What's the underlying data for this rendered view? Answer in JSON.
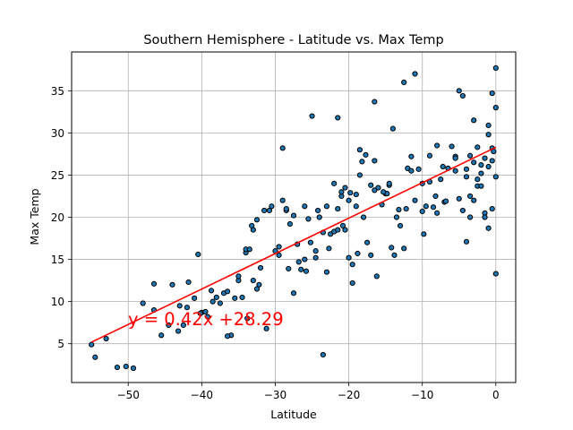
{
  "chart_data": {
    "type": "scatter",
    "title": "Southern Hemisphere - Latitude vs. Max Temp",
    "xlabel": "Latitude",
    "ylabel": "Max Temp",
    "xlim": [
      -57.7,
      2.7
    ],
    "ylim": [
      0.4,
      39.6
    ],
    "xticks": [
      -50,
      -40,
      -30,
      -20,
      -10,
      0
    ],
    "yticks": [
      5,
      10,
      15,
      20,
      25,
      30,
      35
    ],
    "grid": true,
    "colors": {
      "point": "#1f77b4",
      "point_edge": "#000000",
      "line": "#ff0000"
    },
    "regression": {
      "slope": 0.42,
      "intercept": 28.29,
      "x_range": [
        -55,
        0
      ],
      "equation": "y = 0.42x +28.29"
    },
    "points": [
      [
        -55,
        4.9
      ],
      [
        -54.5,
        3.4
      ],
      [
        -53,
        5.6
      ],
      [
        -51.5,
        2.2
      ],
      [
        -50.3,
        2.3
      ],
      [
        -49.3,
        2.1
      ],
      [
        -48,
        9.8
      ],
      [
        -46.5,
        12.1
      ],
      [
        -46.5,
        9
      ],
      [
        -45.5,
        6
      ],
      [
        -44.5,
        7.2
      ],
      [
        -44,
        12
      ],
      [
        -43,
        9.5
      ],
      [
        -42.5,
        7.2
      ],
      [
        -42,
        9.3
      ],
      [
        -41.8,
        12.3
      ],
      [
        -41,
        10.4
      ],
      [
        -40.5,
        15.6
      ],
      [
        -40,
        8.7
      ],
      [
        -39.5,
        8.8
      ],
      [
        -38.5,
        10
      ],
      [
        -38,
        10.5
      ],
      [
        -37.5,
        9.8
      ],
      [
        -37,
        11
      ],
      [
        -36.5,
        11.2
      ],
      [
        -36,
        6
      ],
      [
        -35.5,
        10.4
      ],
      [
        -35,
        12.5
      ],
      [
        -35,
        13
      ],
      [
        -34.5,
        10.5
      ],
      [
        -34,
        15.8
      ],
      [
        -34,
        16.2
      ],
      [
        -33.5,
        16.2
      ],
      [
        -33,
        12.5
      ],
      [
        -33,
        18.5
      ],
      [
        -32.5,
        19.7
      ],
      [
        -32.5,
        11.5
      ],
      [
        -32,
        14
      ],
      [
        -31.5,
        20.8
      ],
      [
        -30.5,
        21.3
      ],
      [
        -30,
        16
      ],
      [
        -29.5,
        15.5
      ],
      [
        -29.5,
        16.5
      ],
      [
        -29,
        22
      ],
      [
        -29,
        28.2
      ],
      [
        -28.5,
        20.8
      ],
      [
        -28.5,
        21
      ],
      [
        -28,
        19.2
      ],
      [
        -27.5,
        11
      ],
      [
        -27.5,
        20.2
      ],
      [
        -27,
        16.8
      ],
      [
        -26.5,
        13.8
      ],
      [
        -26,
        15
      ],
      [
        -26,
        21.3
      ],
      [
        -25.5,
        19.8
      ],
      [
        -25.2,
        17
      ],
      [
        -25,
        32
      ],
      [
        -24.5,
        16
      ],
      [
        -24.5,
        15.2
      ],
      [
        -24,
        20
      ],
      [
        -23.5,
        18.2
      ],
      [
        -23.5,
        3.7
      ],
      [
        -23,
        21.3
      ],
      [
        -23,
        13.5
      ],
      [
        -22.5,
        18
      ],
      [
        -22,
        24
      ],
      [
        -22,
        18.3
      ],
      [
        -21.5,
        21
      ],
      [
        -21.5,
        18.5
      ],
      [
        -21.5,
        31.8
      ],
      [
        -21,
        22.5
      ],
      [
        -21,
        23
      ],
      [
        -20.5,
        23.5
      ],
      [
        -20.5,
        18.5
      ],
      [
        -20,
        15.2
      ],
      [
        -20,
        22
      ],
      [
        -19.5,
        14.4
      ],
      [
        -19.5,
        12.2
      ],
      [
        -19,
        21.3
      ],
      [
        -19,
        22.7
      ],
      [
        -18.5,
        28
      ],
      [
        -18.5,
        25
      ],
      [
        -18,
        20
      ],
      [
        -17.5,
        17
      ],
      [
        -17,
        15.5
      ],
      [
        -17,
        23.8
      ],
      [
        -16.5,
        33.7
      ],
      [
        -16.5,
        26.7
      ],
      [
        -16.5,
        23.2
      ],
      [
        -16,
        23.5
      ],
      [
        -15.5,
        21.5
      ],
      [
        -15,
        22.8
      ],
      [
        -14.5,
        23.8
      ],
      [
        -14.5,
        24
      ],
      [
        -14,
        30.5
      ],
      [
        -13.5,
        20
      ],
      [
        -13,
        19
      ],
      [
        -12.5,
        36
      ],
      [
        -12.5,
        16.3
      ],
      [
        -12,
        25.8
      ],
      [
        -11.5,
        27.2
      ],
      [
        -11.5,
        25.5
      ],
      [
        -11,
        22
      ],
      [
        -11,
        37
      ],
      [
        -10.5,
        25.7
      ],
      [
        -10,
        24
      ],
      [
        -10,
        20.7
      ],
      [
        -9.5,
        21.3
      ],
      [
        -9,
        27.3
      ],
      [
        -9,
        24.2
      ],
      [
        -8.5,
        21.2
      ],
      [
        -8,
        28.5
      ],
      [
        -8,
        20.5
      ],
      [
        -7.5,
        24.5
      ],
      [
        -7,
        21.8
      ],
      [
        -6.5,
        25.8
      ],
      [
        -6,
        28.4
      ],
      [
        -5.5,
        27.2
      ],
      [
        -5.5,
        25.5
      ],
      [
        -5,
        35
      ],
      [
        -4.5,
        34.4
      ],
      [
        -4,
        25.7
      ],
      [
        -4,
        24.8
      ],
      [
        -3.5,
        20
      ],
      [
        -3.5,
        27.3
      ],
      [
        -3,
        26.5
      ],
      [
        -3,
        31.5
      ],
      [
        -2.5,
        24.5
      ],
      [
        -2.5,
        23.7
      ],
      [
        -2,
        23.7
      ],
      [
        -2,
        25.2
      ],
      [
        -1.5,
        20.5
      ],
      [
        -1.5,
        20
      ],
      [
        -1,
        26
      ],
      [
        -1,
        18.7
      ],
      [
        -0.5,
        28.2
      ],
      [
        -0.5,
        21
      ],
      [
        0,
        37.7
      ],
      [
        -5.5,
        27
      ],
      [
        -5,
        22.2
      ],
      [
        -4.5,
        20.8
      ],
      [
        -4,
        17.1
      ],
      [
        -3.5,
        22.5
      ],
      [
        -3,
        22
      ],
      [
        -2.5,
        28.3
      ],
      [
        -2,
        26.2
      ],
      [
        -1.5,
        27
      ],
      [
        -1,
        29.8
      ],
      [
        -1,
        30.9
      ],
      [
        -0.5,
        34.7
      ],
      [
        -0.5,
        26.7
      ],
      [
        -0.3,
        27.8
      ],
      [
        0,
        33
      ],
      [
        0,
        24.8
      ],
      [
        0,
        13.3
      ],
      [
        -6.8,
        21.9
      ],
      [
        -7.2,
        26
      ],
      [
        -8.2,
        22.5
      ],
      [
        -9.8,
        18
      ],
      [
        -12.2,
        21
      ],
      [
        -13.2,
        20.9
      ],
      [
        -14.8,
        22.8
      ],
      [
        -15.3,
        23
      ],
      [
        -17.7,
        27.4
      ],
      [
        -18.2,
        26.6
      ],
      [
        -19.8,
        22.9
      ],
      [
        -24.2,
        20.8
      ],
      [
        -26.8,
        14.7
      ],
      [
        -30.8,
        20.8
      ],
      [
        -31.2,
        6.8
      ],
      [
        -33.2,
        19
      ],
      [
        -36.5,
        5.9
      ],
      [
        -38.7,
        11.3
      ],
      [
        -39.2,
        8.2
      ],
      [
        -43.2,
        6.5
      ],
      [
        -40.2,
        8.6
      ],
      [
        -33.8,
        8
      ],
      [
        -32.2,
        12
      ],
      [
        -28.2,
        13.9
      ],
      [
        -25.8,
        13.6
      ],
      [
        -22.7,
        16.3
      ],
      [
        -20.8,
        19
      ],
      [
        -18.8,
        15.7
      ],
      [
        -16.2,
        13
      ],
      [
        -14.2,
        16.4
      ],
      [
        -13.8,
        15.5
      ]
    ]
  }
}
